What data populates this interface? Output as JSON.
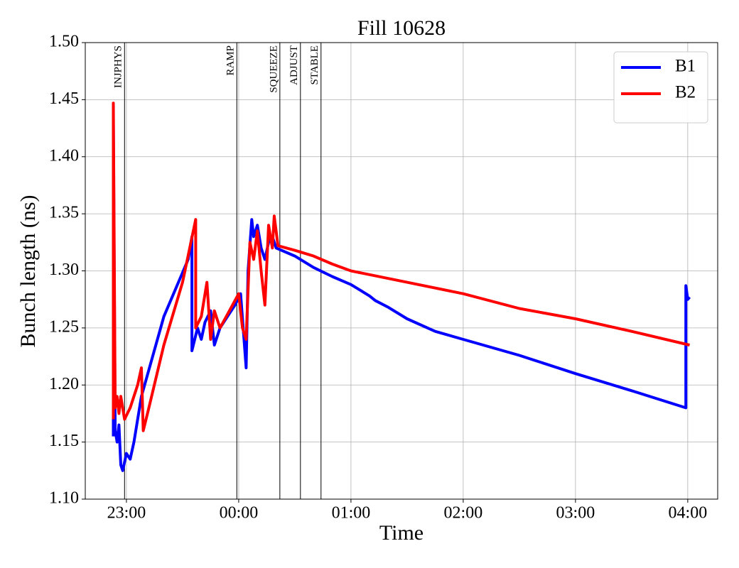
{
  "chart_data": {
    "type": "line",
    "title": "Fill 10628",
    "x_label": "Time",
    "y_label": "Bunch length (ns)",
    "grid": true,
    "legend": "upper right",
    "xlim": [
      "22:38",
      "04:16"
    ],
    "xticks": [
      "23:00",
      "00:00",
      "01:00",
      "02:00",
      "03:00",
      "04:00"
    ],
    "ylim": [
      1.1,
      1.5
    ],
    "yticks": [
      {
        "value": 1.1,
        "label": "1.10"
      },
      1.15,
      {
        "value": 1.2,
        "label": "1.20"
      },
      1.25,
      {
        "value": 1.3,
        "label": "1.30"
      },
      1.35,
      {
        "value": 1.4,
        "label": "1.40"
      },
      1.45,
      {
        "value": 1.5,
        "label": "1.50"
      }
    ],
    "annotations": [
      {
        "x": "22:59",
        "label": "INJPHYS"
      },
      {
        "x": "23:59",
        "label": "RAMP"
      },
      {
        "x": "00:22",
        "label": "SQUEEZE"
      },
      {
        "x": "00:33",
        "label": "ADJUST"
      },
      {
        "x": "00:44",
        "label": "STABLE"
      }
    ],
    "series": [
      {
        "name": "B1",
        "color": "#0000ff",
        "x": [
          "22:53",
          "22:53",
          "22:54",
          "22:55",
          "22:56",
          "22:57",
          "22:58",
          "23:00",
          "23:02",
          "23:04",
          "23:08",
          "23:20",
          "23:33",
          "23:35",
          "23:35",
          "23:38",
          "23:40",
          "23:42",
          "23:45",
          "23:47",
          "23:50",
          "23:54",
          "23:58",
          "00:01",
          "00:04",
          "00:05",
          "00:07",
          "00:08",
          "00:10",
          "00:12",
          "00:14",
          "00:16",
          "00:18",
          "00:20",
          "00:30",
          "00:40",
          "00:50",
          "01:00",
          "01:05",
          "01:10",
          "01:13",
          "01:20",
          "01:30",
          "01:45",
          "02:00",
          "02:30",
          "03:00",
          "03:30",
          "03:59",
          "03:59",
          "04:00",
          "04:01"
        ],
        "values": [
          1.155,
          1.43,
          1.16,
          1.15,
          1.165,
          1.13,
          1.125,
          1.14,
          1.135,
          1.15,
          1.19,
          1.26,
          1.31,
          1.33,
          1.23,
          1.25,
          1.24,
          1.255,
          1.265,
          1.235,
          1.25,
          1.26,
          1.27,
          1.28,
          1.215,
          1.3,
          1.345,
          1.33,
          1.34,
          1.32,
          1.31,
          1.325,
          1.33,
          1.32,
          1.313,
          1.303,
          1.295,
          1.288,
          1.283,
          1.278,
          1.274,
          1.268,
          1.258,
          1.247,
          1.24,
          1.226,
          1.21,
          1.195,
          1.18,
          1.287,
          1.275,
          1.277
        ]
      },
      {
        "name": "B2",
        "color": "#ff0000",
        "x": [
          "22:53",
          "22:53",
          "22:54",
          "22:55",
          "22:56",
          "22:57",
          "22:59",
          "23:02",
          "23:06",
          "23:08",
          "23:09",
          "23:12",
          "23:20",
          "23:30",
          "23:37",
          "23:37",
          "23:40",
          "23:43",
          "23:45",
          "23:47",
          "23:50",
          "23:55",
          "00:00",
          "00:02",
          "00:04",
          "00:06",
          "00:08",
          "00:10",
          "00:12",
          "00:14",
          "00:16",
          "00:18",
          "00:19",
          "00:21",
          "00:30",
          "00:40",
          "00:50",
          "01:00",
          "01:30",
          "02:00",
          "02:30",
          "03:00",
          "03:30",
          "04:01"
        ],
        "values": [
          1.17,
          1.447,
          1.18,
          1.19,
          1.175,
          1.19,
          1.17,
          1.18,
          1.2,
          1.215,
          1.16,
          1.18,
          1.235,
          1.29,
          1.345,
          1.25,
          1.26,
          1.29,
          1.24,
          1.265,
          1.25,
          1.265,
          1.28,
          1.25,
          1.24,
          1.325,
          1.31,
          1.335,
          1.3,
          1.27,
          1.34,
          1.32,
          1.348,
          1.322,
          1.318,
          1.313,
          1.306,
          1.3,
          1.29,
          1.28,
          1.267,
          1.258,
          1.247,
          1.235
        ]
      }
    ]
  }
}
